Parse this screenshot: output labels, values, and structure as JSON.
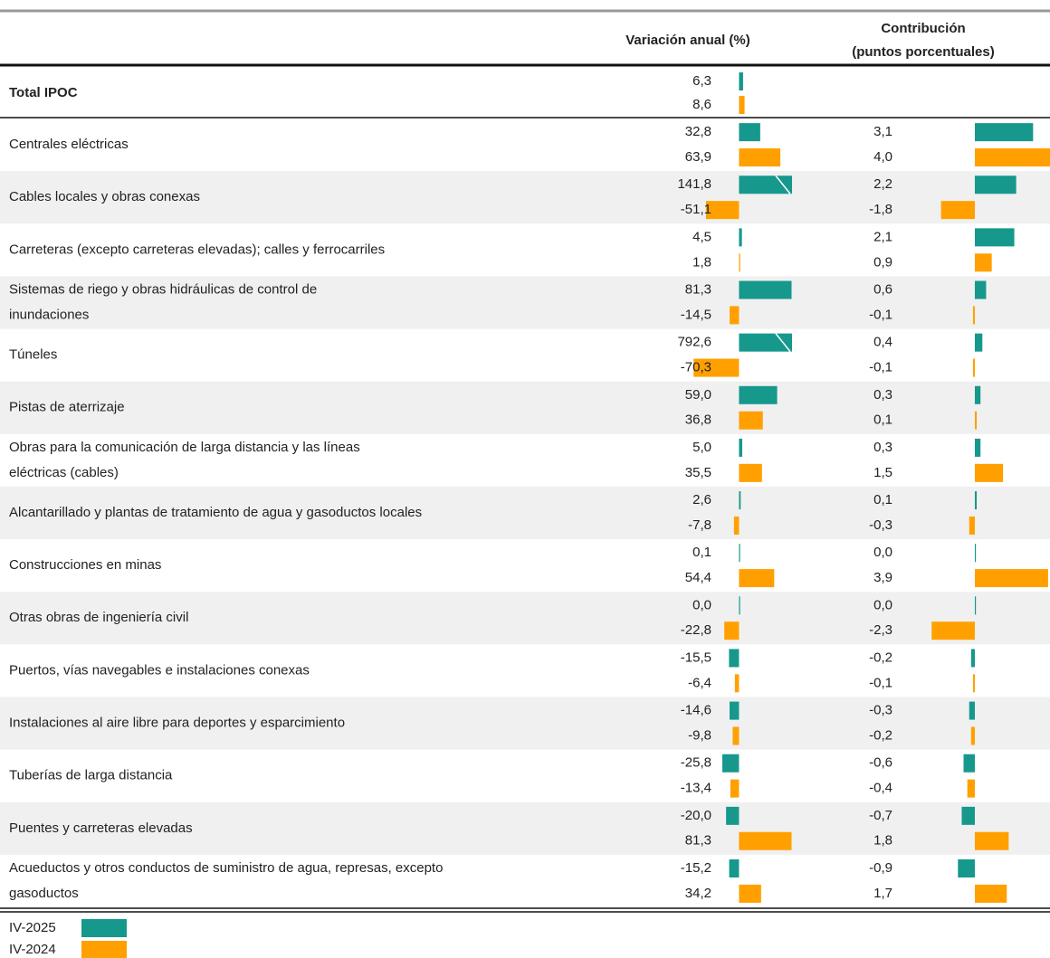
{
  "table": {
    "header": {
      "variation": "Variación anual (%)",
      "contribution": [
        "Contribución",
        "(puntos porcentuales)"
      ]
    },
    "variation_xlim": [
      -72,
      82
    ],
    "contribution_xlim": [
      -2.6,
      4.0
    ],
    "series": [
      {
        "name": "IV-2025",
        "color": "#16988c"
      },
      {
        "name": "IV-2024",
        "color": "#ffa000"
      }
    ],
    "total": {
      "label": [
        "Total IPOC"
      ],
      "variation": [
        {
          "value": 6.3,
          "label": "6,3"
        },
        {
          "value": 8.6,
          "label": "8,6"
        }
      ]
    },
    "rows": [
      {
        "label": [
          "Centrales eléctricas"
        ],
        "variation": [
          {
            "value": 32.8,
            "label": "32,8"
          },
          {
            "value": 63.9,
            "label": "63,9"
          }
        ],
        "contribution": [
          {
            "value": 3.1,
            "label": "3,1"
          },
          {
            "value": 4.0,
            "label": "4,0"
          }
        ]
      },
      {
        "label": [
          "Cables locales y obras conexas"
        ],
        "variation": [
          {
            "value": 141.8,
            "label": "141,8"
          },
          {
            "value": -51.1,
            "label": "-51,1"
          }
        ],
        "contribution": [
          {
            "value": 2.2,
            "label": "2,2"
          },
          {
            "value": -1.8,
            "label": "-1,8"
          }
        ]
      },
      {
        "label": [
          "Carreteras (excepto carreteras elevadas); calles y ferrocarriles"
        ],
        "variation": [
          {
            "value": 4.5,
            "label": "4,5"
          },
          {
            "value": 1.8,
            "label": "1,8"
          }
        ],
        "contribution": [
          {
            "value": 2.1,
            "label": "2,1"
          },
          {
            "value": 0.9,
            "label": "0,9"
          }
        ]
      },
      {
        "label": [
          "Sistemas de riego y obras hidráulicas de control de",
          "inundaciones"
        ],
        "variation": [
          {
            "value": 81.3,
            "label": "81,3"
          },
          {
            "value": -14.5,
            "label": "-14,5"
          }
        ],
        "contribution": [
          {
            "value": 0.6,
            "label": "0,6"
          },
          {
            "value": -0.1,
            "label": "-0,1"
          }
        ]
      },
      {
        "label": [
          "Túneles"
        ],
        "variation": [
          {
            "value": 792.6,
            "label": "792,6"
          },
          {
            "value": -70.3,
            "label": "-70,3"
          }
        ],
        "contribution": [
          {
            "value": 0.4,
            "label": "0,4"
          },
          {
            "value": -0.1,
            "label": "-0,1"
          }
        ]
      },
      {
        "label": [
          "Pistas de aterrizaje"
        ],
        "variation": [
          {
            "value": 59,
            "label": "59,0"
          },
          {
            "value": 36.8,
            "label": "36,8"
          }
        ],
        "contribution": [
          {
            "value": 0.3,
            "label": "0,3"
          },
          {
            "value": 0.1,
            "label": "0,1"
          }
        ]
      },
      {
        "label": [
          "Obras para la comunicación de larga distancia y las líneas",
          "eléctricas (cables)"
        ],
        "variation": [
          {
            "value": 5,
            "label": "5,0"
          },
          {
            "value": 35.5,
            "label": "35,5"
          }
        ],
        "contribution": [
          {
            "value": 0.3,
            "label": "0,3"
          },
          {
            "value": 1.5,
            "label": "1,5"
          }
        ]
      },
      {
        "label": [
          "Alcantarillado y plantas de tratamiento de agua y gasoductos locales"
        ],
        "variation": [
          {
            "value": 2.6,
            "label": "2,6"
          },
          {
            "value": -7.8,
            "label": "-7,8"
          }
        ],
        "contribution": [
          {
            "value": 0.1,
            "label": "0,1"
          },
          {
            "value": -0.3,
            "label": "-0,3"
          }
        ]
      },
      {
        "label": [
          "Construcciones en minas"
        ],
        "variation": [
          {
            "value": 0.1,
            "label": "0,1"
          },
          {
            "value": 54.4,
            "label": "54,4"
          }
        ],
        "contribution": [
          {
            "value": 0,
            "label": "0,0"
          },
          {
            "value": 3.9,
            "label": "3,9"
          }
        ]
      },
      {
        "label": [
          "Otras obras de ingeniería civil"
        ],
        "variation": [
          {
            "value": 0,
            "label": "0,0"
          },
          {
            "value": -22.8,
            "label": "-22,8"
          }
        ],
        "contribution": [
          {
            "value": 0,
            "label": "0,0"
          },
          {
            "value": -2.3,
            "label": "-2,3"
          }
        ]
      },
      {
        "label": [
          "Puertos, vías navegables e instalaciones conexas"
        ],
        "variation": [
          {
            "value": -15.5,
            "label": "-15,5"
          },
          {
            "value": -6.4,
            "label": "-6,4"
          }
        ],
        "contribution": [
          {
            "value": -0.2,
            "label": "-0,2"
          },
          {
            "value": -0.1,
            "label": "-0,1"
          }
        ]
      },
      {
        "label": [
          "Instalaciones al aire libre para deportes y esparcimiento"
        ],
        "variation": [
          {
            "value": -14.6,
            "label": "-14,6"
          },
          {
            "value": -9.8,
            "label": "-9,8"
          }
        ],
        "contribution": [
          {
            "value": -0.3,
            "label": "-0,3"
          },
          {
            "value": -0.2,
            "label": "-0,2"
          }
        ]
      },
      {
        "label": [
          "Tuberías de larga distancia"
        ],
        "variation": [
          {
            "value": -25.8,
            "label": "-25,8"
          },
          {
            "value": -13.4,
            "label": "-13,4"
          }
        ],
        "contribution": [
          {
            "value": -0.6,
            "label": "-0,6"
          },
          {
            "value": -0.4,
            "label": "-0,4"
          }
        ]
      },
      {
        "label": [
          "Puentes y carreteras elevadas"
        ],
        "variation": [
          {
            "value": -20,
            "label": "-20,0"
          },
          {
            "value": 81.3,
            "label": "81,3"
          }
        ],
        "contribution": [
          {
            "value": -0.7,
            "label": "-0,7"
          },
          {
            "value": 1.8,
            "label": "1,8"
          }
        ]
      },
      {
        "label": [
          "Acueductos y otros conductos de suministro de agua, represas, excepto",
          "gasoductos"
        ],
        "variation": [
          {
            "value": -15.2,
            "label": "-15,2"
          },
          {
            "value": 34.2,
            "label": "34,2"
          }
        ],
        "contribution": [
          {
            "value": -0.9,
            "label": "-0,9"
          },
          {
            "value": 1.7,
            "label": "1,7"
          }
        ]
      }
    ]
  }
}
